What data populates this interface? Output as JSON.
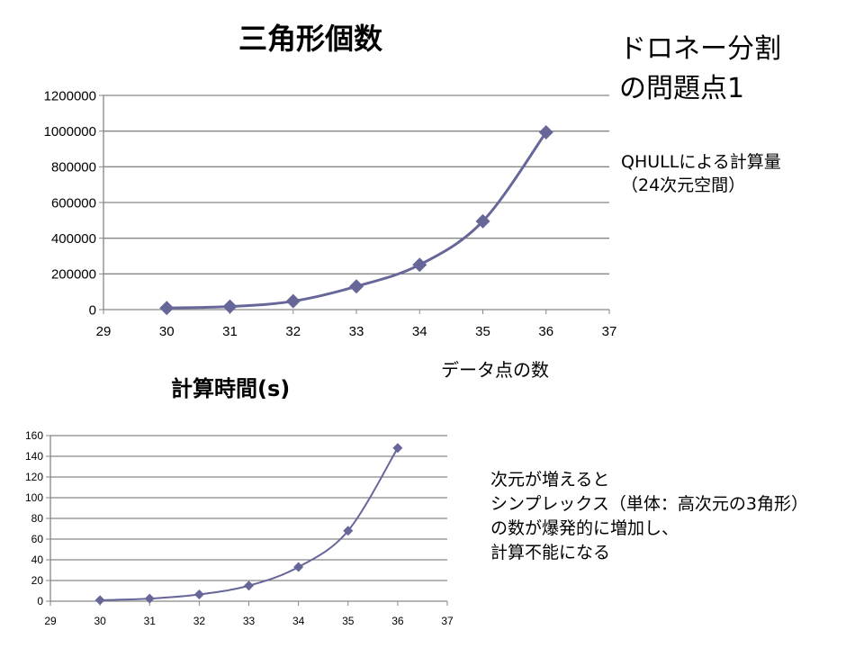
{
  "slide": {
    "title_lines": [
      "ドロネー分割",
      "の問題点1"
    ],
    "note1_lines": [
      "QHULLによる計算量",
      "（24次元空間）"
    ],
    "note2_lines": [
      "次元が増えると",
      "シンプレックス（単体：高次元の3角形）",
      "の数が爆発的に増加し、",
      "計算不能になる"
    ]
  },
  "colors": {
    "series": "#666699",
    "grid": "#868686"
  },
  "chart_data": [
    {
      "type": "line",
      "title": "三角形個数",
      "xlabel": "データ点の数",
      "ylabel": "",
      "x": [
        30,
        31,
        32,
        33,
        34,
        35,
        36
      ],
      "series": [
        {
          "name": "三角形個数",
          "values": [
            9000,
            17000,
            47000,
            130000,
            251000,
            495000,
            993000
          ]
        }
      ],
      "xlim": [
        29,
        37
      ],
      "ylim": [
        0,
        1200000
      ],
      "xticks": [
        "29",
        "30",
        "31",
        "32",
        "33",
        "34",
        "35",
        "36",
        "37"
      ],
      "yticks": [
        "0",
        "200000",
        "400000",
        "600000",
        "800000",
        "1000000",
        "1200000"
      ],
      "grid": true,
      "legend": "none"
    },
    {
      "type": "line",
      "title": "計算時間(s)",
      "xlabel": "",
      "ylabel": "",
      "x": [
        30,
        31,
        32,
        33,
        34,
        35,
        36
      ],
      "series": [
        {
          "name": "計算時間(s)",
          "values": [
            1,
            2.5,
            6.5,
            15,
            33,
            68,
            148
          ]
        }
      ],
      "xlim": [
        29,
        37
      ],
      "ylim": [
        0,
        160
      ],
      "xticks": [
        "29",
        "30",
        "31",
        "32",
        "33",
        "34",
        "35",
        "36",
        "37"
      ],
      "yticks": [
        "0",
        "20",
        "40",
        "60",
        "80",
        "100",
        "120",
        "140",
        "160"
      ],
      "grid": true,
      "legend": "none"
    }
  ]
}
